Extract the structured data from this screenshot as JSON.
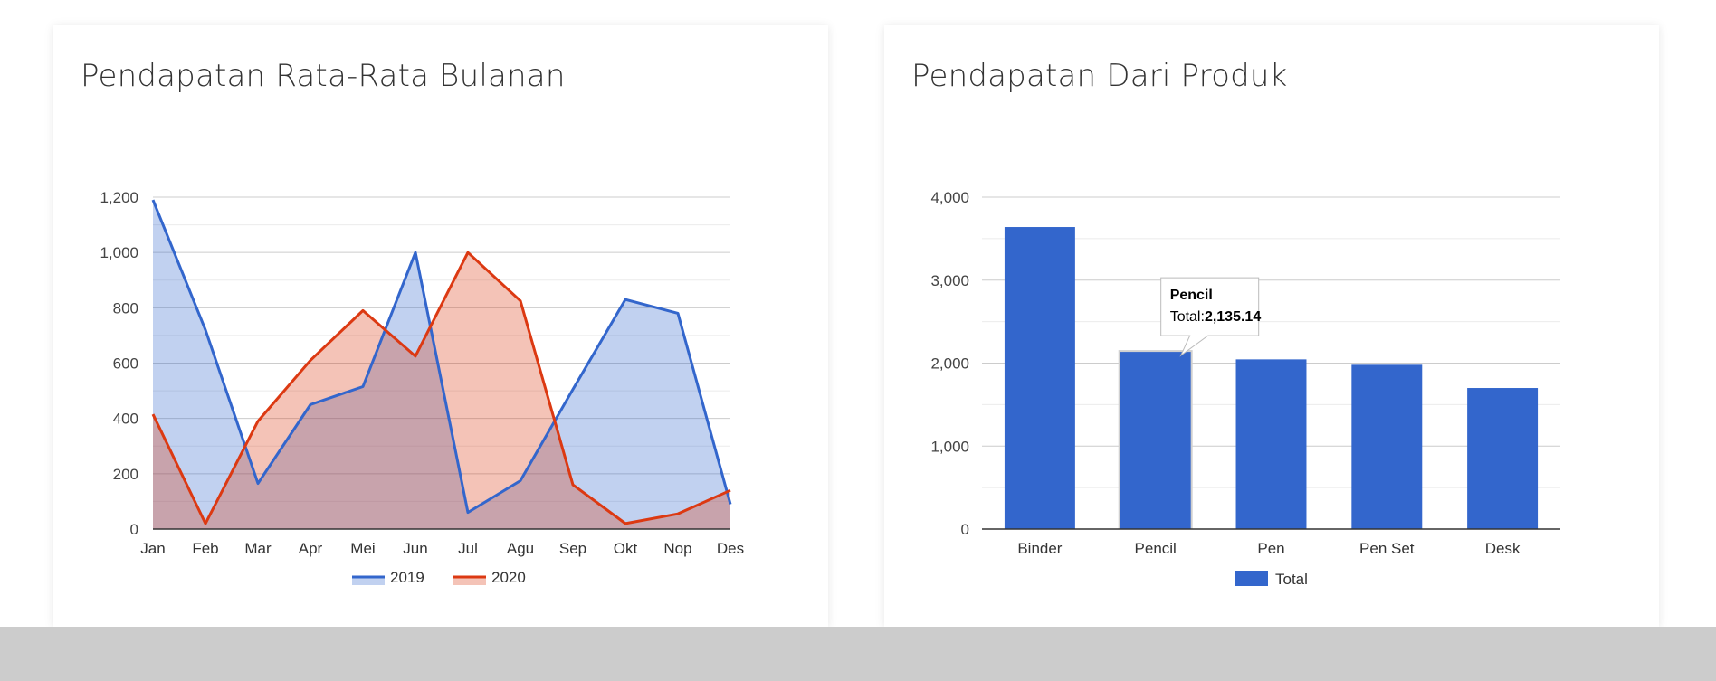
{
  "page": {
    "area_card": {
      "title": "Pendapatan Rata-Rata Bulanan"
    },
    "bar_card": {
      "title": "Pendapatan Dari Produk"
    }
  },
  "chart_data": [
    {
      "type": "area",
      "title": "Pendapatan Rata-Rata Bulanan",
      "categories": [
        "Jan",
        "Feb",
        "Mar",
        "Apr",
        "Mei",
        "Jun",
        "Jul",
        "Agu",
        "Sep",
        "Okt",
        "Nop",
        "Des"
      ],
      "ylim": [
        0,
        1200
      ],
      "yticks": [
        0,
        200,
        400,
        600,
        800,
        1000,
        1200
      ],
      "ytick_labels": [
        "0",
        "200",
        "400",
        "600",
        "800",
        "1,000",
        "1,200"
      ],
      "grid": true,
      "legend_position": "bottom",
      "series": [
        {
          "name": "2019",
          "color": "#3366cc",
          "fill": "rgba(51,102,204,0.30)",
          "values": [
            1190,
            720,
            165,
            450,
            515,
            1000,
            60,
            175,
            505,
            830,
            780,
            90
          ]
        },
        {
          "name": "2020",
          "color": "#dc3912",
          "fill": "rgba(220,57,18,0.30)",
          "values": [
            415,
            20,
            390,
            610,
            790,
            625,
            1000,
            825,
            160,
            20,
            55,
            140
          ]
        }
      ]
    },
    {
      "type": "bar",
      "title": "Pendapatan Dari Produk",
      "categories": [
        "Binder",
        "Pencil",
        "Pen",
        "Pen Set",
        "Desk"
      ],
      "ylim": [
        0,
        4000
      ],
      "yticks": [
        0,
        1000,
        2000,
        3000,
        4000
      ],
      "ytick_labels": [
        "0",
        "1,000",
        "2,000",
        "3,000",
        "4,000"
      ],
      "grid": true,
      "legend_position": "bottom",
      "series": [
        {
          "name": "Total",
          "color": "#3366cc",
          "values": [
            3640,
            2135.14,
            2045,
            1980,
            1700
          ]
        }
      ],
      "tooltip": {
        "category": "Pencil",
        "label": "Total:",
        "value": "2,135.14"
      }
    }
  ]
}
